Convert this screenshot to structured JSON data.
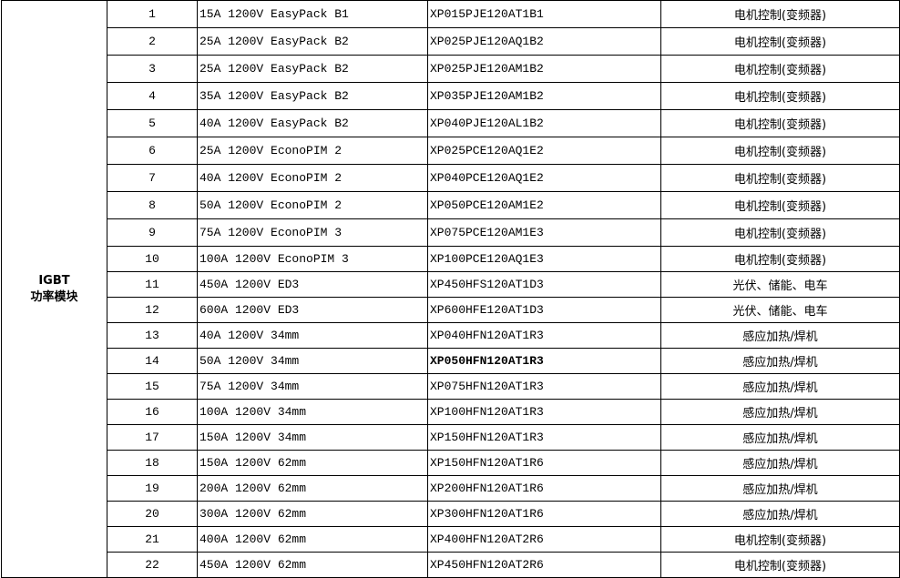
{
  "category": {
    "line1": "IGBT",
    "line2": "功率模块"
  },
  "rows": [
    {
      "no": "1",
      "desc": "15A 1200V EasyPack B1",
      "part": "XP015PJE120AT1B1",
      "app": "电机控制(变频器)"
    },
    {
      "no": "2",
      "desc": "25A 1200V EasyPack B2",
      "part": "XP025PJE120AQ1B2",
      "app": "电机控制(变频器)"
    },
    {
      "no": "3",
      "desc": "25A 1200V EasyPack B2",
      "part": "XP025PJE120AM1B2",
      "app": "电机控制(变频器)"
    },
    {
      "no": "4",
      "desc": "35A 1200V EasyPack B2",
      "part": "XP035PJE120AM1B2",
      "app": "电机控制(变频器)"
    },
    {
      "no": "5",
      "desc": "40A 1200V EasyPack B2",
      "part": "XP040PJE120AL1B2",
      "app": "电机控制(变频器)"
    },
    {
      "no": "6",
      "desc": "25A 1200V EconoPIM 2",
      "part": "XP025PCE120AQ1E2",
      "app": "电机控制(变频器)"
    },
    {
      "no": "7",
      "desc": "40A 1200V EconoPIM 2",
      "part": "XP040PCE120AQ1E2",
      "app": "电机控制(变频器)"
    },
    {
      "no": "8",
      "desc": "50A 1200V EconoPIM 2",
      "part": "XP050PCE120AM1E2",
      "app": "电机控制(变频器)"
    },
    {
      "no": "9",
      "desc": "75A 1200V EconoPIM 3",
      "part": "XP075PCE120AM1E3",
      "app": "电机控制(变频器)"
    },
    {
      "no": "10",
      "desc": "100A 1200V EconoPIM 3",
      "part": "XP100PCE120AQ1E3",
      "app": "电机控制(变频器)"
    },
    {
      "no": "11",
      "desc": "450A 1200V ED3",
      "part": "XP450HFS120AT1D3",
      "app": "光伏、储能、电车"
    },
    {
      "no": "12",
      "desc": "600A 1200V ED3",
      "part": "XP600HFE120AT1D3",
      "app": "光伏、储能、电车"
    },
    {
      "no": "13",
      "desc": "40A 1200V 34mm",
      "part": "XP040HFN120AT1R3",
      "app": "感应加热/焊机"
    },
    {
      "no": "14",
      "desc": "50A 1200V 34mm",
      "part": "XP050HFN120AT1R3",
      "app": "感应加热/焊机"
    },
    {
      "no": "15",
      "desc": "75A 1200V 34mm",
      "part": "XP075HFN120AT1R3",
      "app": "感应加热/焊机"
    },
    {
      "no": "16",
      "desc": "100A 1200V 34mm",
      "part": "XP100HFN120AT1R3",
      "app": "感应加热/焊机"
    },
    {
      "no": "17",
      "desc": "150A 1200V 34mm",
      "part": "XP150HFN120AT1R3",
      "app": "感应加热/焊机"
    },
    {
      "no": "18",
      "desc": "150A 1200V 62mm",
      "part": "XP150HFN120AT1R6",
      "app": "感应加热/焊机"
    },
    {
      "no": "19",
      "desc": "200A 1200V 62mm",
      "part": "XP200HFN120AT1R6",
      "app": "感应加热/焊机"
    },
    {
      "no": "20",
      "desc": "300A 1200V 62mm",
      "part": "XP300HFN120AT1R6",
      "app": "感应加热/焊机"
    },
    {
      "no": "21",
      "desc": "400A 1200V 62mm",
      "part": "XP400HFN120AT2R6",
      "app": "电机控制(变频器)"
    },
    {
      "no": "22",
      "desc": "450A 1200V 62mm",
      "part": "XP450HFN120AT2R6",
      "app": "电机控制(变频器)"
    }
  ]
}
